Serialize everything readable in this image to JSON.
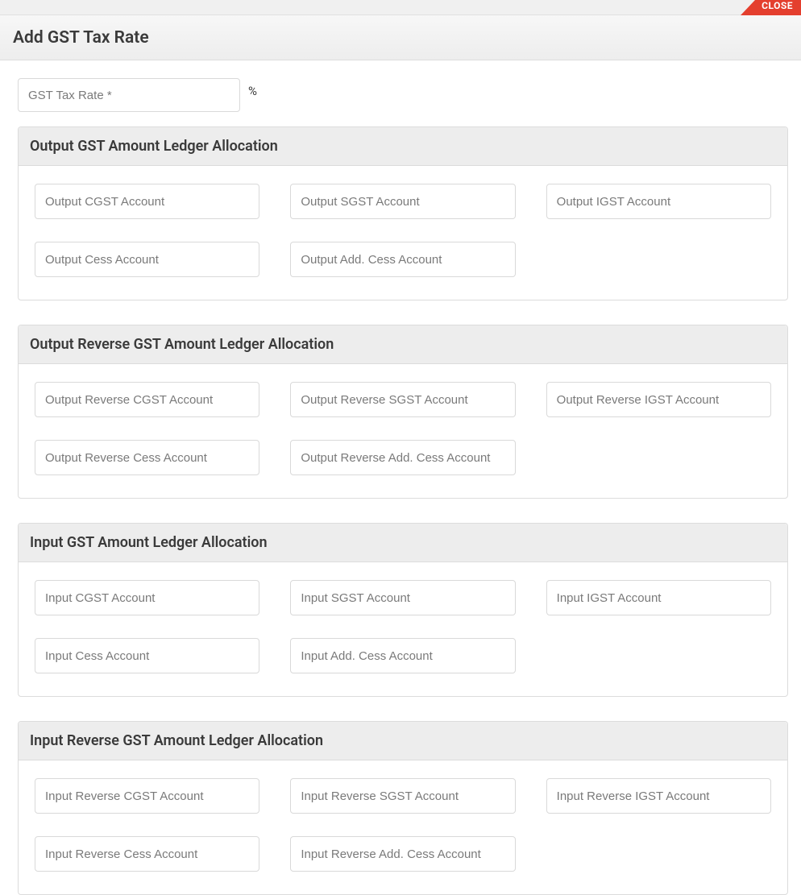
{
  "close_label": "CLOSE",
  "page_title": "Add GST Tax Rate",
  "rate_placeholder": "GST Tax Rate *",
  "percent_symbol": "%",
  "sections": {
    "output": {
      "title": "Output GST Amount Ledger Allocation",
      "cgst": "Output CGST Account",
      "sgst": "Output SGST Account",
      "igst": "Output IGST Account",
      "cess": "Output Cess Account",
      "addcess": "Output Add. Cess Account"
    },
    "output_reverse": {
      "title": "Output Reverse GST Amount Ledger Allocation",
      "cgst": "Output Reverse CGST Account",
      "sgst": "Output Reverse SGST Account",
      "igst": "Output Reverse IGST Account",
      "cess": "Output Reverse Cess Account",
      "addcess": "Output Reverse Add. Cess Account"
    },
    "input": {
      "title": "Input GST Amount Ledger Allocation",
      "cgst": "Input CGST Account",
      "sgst": "Input SGST Account",
      "igst": "Input IGST Account",
      "cess": "Input Cess Account",
      "addcess": "Input Add. Cess Account"
    },
    "input_reverse": {
      "title": "Input Reverse GST Amount Ledger Allocation",
      "cgst": "Input Reverse CGST Account",
      "sgst": "Input Reverse SGST Account",
      "igst": "Input Reverse IGST Account",
      "cess": "Input Reverse Cess Account",
      "addcess": "Input Reverse Add. Cess Account"
    }
  }
}
